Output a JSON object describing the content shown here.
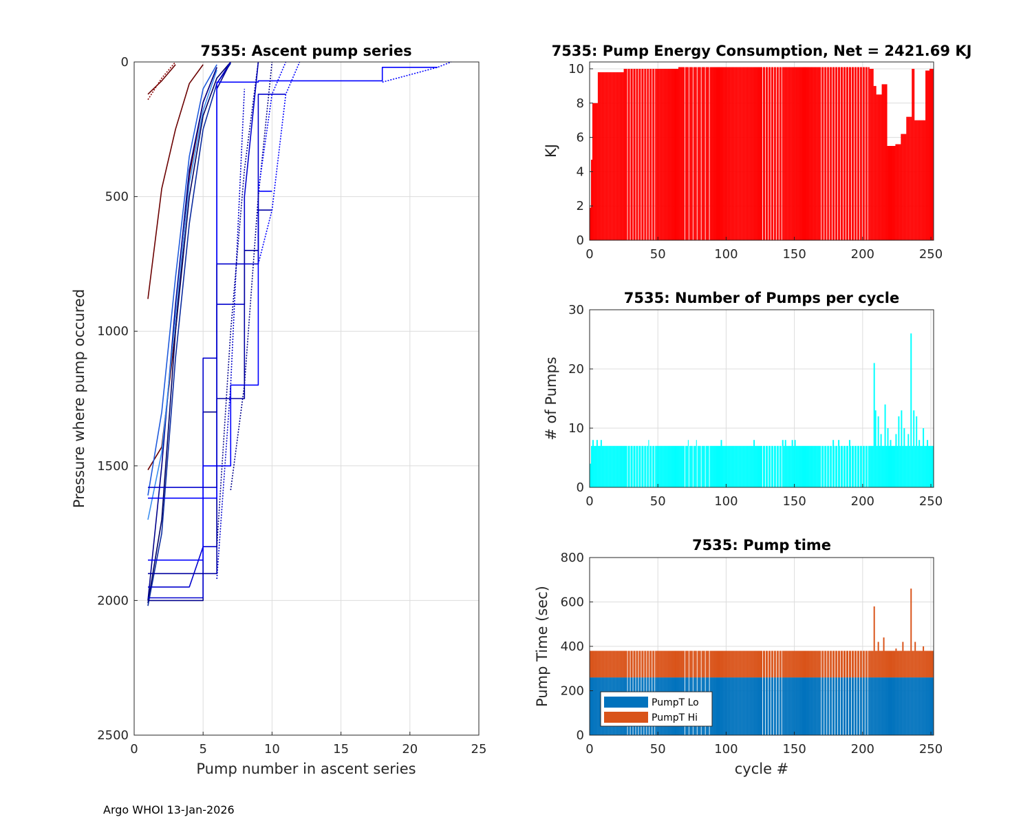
{
  "footer": "Argo WHOI 13-Jan-2026",
  "colors": {
    "energy": "#ff0000",
    "pumps": "#00ffff",
    "lo": "#0072bd",
    "hi": "#d95319",
    "grid": "#dcdcdc"
  },
  "chart_data": [
    {
      "id": "ascent",
      "type": "line",
      "title": "7535: Ascent pump series",
      "xlabel": "Pump number in ascent series",
      "ylabel": "Pressure where pump occured",
      "xlim": [
        0,
        25
      ],
      "ylim": [
        0,
        2500
      ],
      "y_reversed": true,
      "xticks": [
        "0",
        "5",
        "10",
        "15",
        "20",
        "25"
      ],
      "yticks": [
        "0",
        "500",
        "1000",
        "1500",
        "2000",
        "2500"
      ],
      "series": [
        {
          "name": "cycle-early-1",
          "color": "#6b0000",
          "dash": false,
          "x": [
            1,
            2,
            3,
            4,
            5,
            6
          ],
          "y": [
            1515,
            1430,
            1000,
            420,
            150,
            20
          ]
        },
        {
          "name": "cycle-early-2",
          "color": "#6b0000",
          "dash": false,
          "x": [
            1,
            2,
            3,
            4,
            5
          ],
          "y": [
            880,
            470,
            250,
            80,
            10
          ]
        },
        {
          "name": "cycle-early-3",
          "color": "#6b0000",
          "dash": false,
          "x": [
            1,
            2,
            3
          ],
          "y": [
            120,
            70,
            10
          ]
        },
        {
          "name": "cycle-a",
          "color": "#000060",
          "dash": false,
          "x": [
            1,
            2,
            3,
            4,
            5,
            6,
            7
          ],
          "y": [
            2010,
            1700,
            1000,
            500,
            200,
            60,
            0
          ]
        },
        {
          "name": "cycle-b",
          "color": "#00008b",
          "dash": false,
          "x": [
            1,
            2,
            3,
            4,
            5,
            6
          ],
          "y": [
            2000,
            1500,
            900,
            400,
            150,
            20
          ]
        },
        {
          "name": "cycle-c",
          "color": "#0a2a9e",
          "dash": false,
          "x": [
            1,
            2,
            3,
            4,
            5,
            6,
            7
          ],
          "y": [
            2020,
            1750,
            1100,
            600,
            250,
            80,
            5
          ]
        },
        {
          "name": "cycle-d",
          "color": "#1e5adc",
          "dash": false,
          "x": [
            1,
            2,
            3,
            4,
            5,
            6
          ],
          "y": [
            1610,
            1300,
            800,
            350,
            100,
            10
          ]
        },
        {
          "name": "cycle-e",
          "color": "#3a8ef0",
          "dash": false,
          "x": [
            1,
            2,
            3,
            4,
            5,
            6
          ],
          "y": [
            1700,
            1450,
            950,
            450,
            180,
            30
          ]
        },
        {
          "name": "cycle-f",
          "color": "#00008b",
          "dash": false,
          "x": [
            1,
            5,
            5,
            6,
            6,
            7
          ],
          "y": [
            2000,
            2000,
            1300,
            1300,
            100,
            0
          ]
        },
        {
          "name": "cycle-g",
          "color": "#0000cd",
          "dash": false,
          "x": [
            1,
            5,
            5,
            6,
            6,
            7
          ],
          "y": [
            1990,
            1990,
            1100,
            1100,
            80,
            0
          ]
        },
        {
          "name": "cycle-h",
          "color": "#0000cd",
          "dash": false,
          "x": [
            1,
            4,
            5,
            6,
            6,
            8,
            8,
            9
          ],
          "y": [
            1950,
            1950,
            1800,
            1800,
            900,
            900,
            500,
            0
          ]
        },
        {
          "name": "cycle-i",
          "color": "#0000a0",
          "dash": false,
          "x": [
            1,
            6,
            6,
            8,
            8,
            9,
            9,
            10
          ],
          "y": [
            1900,
            1900,
            1250,
            1250,
            700,
            700,
            550,
            550
          ]
        },
        {
          "name": "cycle-j",
          "color": "#0000ff",
          "dash": false,
          "x": [
            1,
            5,
            5,
            7,
            7,
            9,
            9,
            10
          ],
          "y": [
            1850,
            1850,
            1500,
            1500,
            1200,
            1200,
            480,
            480
          ]
        },
        {
          "name": "cycle-k",
          "color": "#0000ff",
          "dash": false,
          "x": [
            1,
            6,
            6,
            9,
            9,
            18,
            18,
            22
          ],
          "y": [
            1620,
            1620,
            75,
            75,
            70,
            70,
            20,
            20
          ]
        },
        {
          "name": "cycle-l",
          "color": "#0000cd",
          "dash": false,
          "x": [
            1,
            6,
            6,
            9,
            9,
            11
          ],
          "y": [
            1580,
            1580,
            750,
            750,
            120,
            120
          ]
        },
        {
          "name": "dot-a",
          "color": "#0000ff",
          "dash": true,
          "x": [
            18,
            22,
            23
          ],
          "y": [
            75,
            20,
            0
          ]
        },
        {
          "name": "dot-b",
          "color": "#0000ff",
          "dash": true,
          "x": [
            9,
            10,
            11,
            12
          ],
          "y": [
            750,
            550,
            120,
            0
          ]
        },
        {
          "name": "dot-c",
          "color": "#00008b",
          "dash": true,
          "x": [
            7,
            8,
            9,
            10
          ],
          "y": [
            1590,
            1200,
            500,
            0
          ]
        },
        {
          "name": "dot-d",
          "color": "#0000cd",
          "dash": true,
          "x": [
            6,
            7,
            8
          ],
          "y": [
            1920,
            1200,
            100
          ]
        },
        {
          "name": "dot-e",
          "color": "#0000ff",
          "dash": true,
          "x": [
            9,
            10,
            11
          ],
          "y": [
            480,
            120,
            0
          ]
        },
        {
          "name": "dot-f",
          "color": "#8b0000",
          "dash": true,
          "x": [
            1,
            2,
            3
          ],
          "y": [
            140,
            60,
            0
          ]
        },
        {
          "name": "dot-g",
          "color": "#00008b",
          "dash": true,
          "x": [
            6,
            7,
            8,
            9
          ],
          "y": [
            1800,
            1000,
            400,
            0
          ]
        }
      ]
    },
    {
      "id": "energy",
      "type": "bar",
      "title": "7535: Pump Energy Consumption,  Net = 2421.69 KJ",
      "xlabel": "",
      "ylabel": "KJ",
      "xlim": [
        0,
        252
      ],
      "ylim": [
        0,
        10.4
      ],
      "xticks": [
        "0",
        "50",
        "100",
        "150",
        "200",
        "250"
      ],
      "yticks": [
        "0",
        "2",
        "4",
        "6",
        "8",
        "10"
      ],
      "note": "cycle-by-cycle values (KJ) for cycles 0..251",
      "segments": [
        {
          "from": 0,
          "to": 1,
          "value": 1.9
        },
        {
          "from": 1,
          "to": 2,
          "value": 4.7
        },
        {
          "from": 2,
          "to": 6,
          "value": 8.0
        },
        {
          "from": 6,
          "to": 25,
          "value": 9.8
        },
        {
          "from": 25,
          "to": 65,
          "value": 10.0
        },
        {
          "from": 65,
          "to": 90,
          "value": 10.1
        },
        {
          "from": 90,
          "to": 205,
          "value": 10.1
        },
        {
          "from": 205,
          "to": 208,
          "value": 10.0
        },
        {
          "from": 208,
          "to": 210,
          "value": 9.0
        },
        {
          "from": 210,
          "to": 214,
          "value": 8.5
        },
        {
          "from": 214,
          "to": 218,
          "value": 9.1
        },
        {
          "from": 218,
          "to": 224,
          "value": 5.5
        },
        {
          "from": 224,
          "to": 228,
          "value": 5.6
        },
        {
          "from": 228,
          "to": 232,
          "value": 6.2
        },
        {
          "from": 232,
          "to": 236,
          "value": 7.2
        },
        {
          "from": 236,
          "to": 238,
          "value": 10.0
        },
        {
          "from": 238,
          "to": 246,
          "value": 7.0
        },
        {
          "from": 246,
          "to": 249,
          "value": 9.9
        },
        {
          "from": 249,
          "to": 252,
          "value": 10.0
        }
      ]
    },
    {
      "id": "pumps",
      "type": "bar",
      "title": "7535: Number of Pumps per cycle",
      "xlabel": "",
      "ylabel": "# of Pumps",
      "xlim": [
        0,
        252
      ],
      "ylim": [
        0,
        30
      ],
      "xticks": [
        "0",
        "50",
        "100",
        "150",
        "200",
        "250"
      ],
      "yticks": [
        "0",
        "10",
        "20",
        "30"
      ],
      "base": 7,
      "spikes": [
        {
          "cycle": 0,
          "value": 4
        },
        {
          "cycle": 2,
          "value": 8
        },
        {
          "cycle": 5,
          "value": 8
        },
        {
          "cycle": 8,
          "value": 8
        },
        {
          "cycle": 43,
          "value": 8
        },
        {
          "cycle": 72,
          "value": 8
        },
        {
          "cycle": 78,
          "value": 8
        },
        {
          "cycle": 96,
          "value": 8
        },
        {
          "cycle": 120,
          "value": 8
        },
        {
          "cycle": 141,
          "value": 8
        },
        {
          "cycle": 143,
          "value": 8
        },
        {
          "cycle": 148,
          "value": 8
        },
        {
          "cycle": 150,
          "value": 8
        },
        {
          "cycle": 178,
          "value": 8
        },
        {
          "cycle": 182,
          "value": 8
        },
        {
          "cycle": 190,
          "value": 8
        },
        {
          "cycle": 208,
          "value": 21
        },
        {
          "cycle": 209,
          "value": 13
        },
        {
          "cycle": 211,
          "value": 12
        },
        {
          "cycle": 213,
          "value": 9
        },
        {
          "cycle": 216,
          "value": 14
        },
        {
          "cycle": 218,
          "value": 10
        },
        {
          "cycle": 220,
          "value": 8
        },
        {
          "cycle": 224,
          "value": 9
        },
        {
          "cycle": 226,
          "value": 12
        },
        {
          "cycle": 228,
          "value": 13
        },
        {
          "cycle": 230,
          "value": 10
        },
        {
          "cycle": 233,
          "value": 9
        },
        {
          "cycle": 235,
          "value": 26
        },
        {
          "cycle": 237,
          "value": 13
        },
        {
          "cycle": 239,
          "value": 12
        },
        {
          "cycle": 241,
          "value": 8
        },
        {
          "cycle": 244,
          "value": 10
        },
        {
          "cycle": 247,
          "value": 8
        }
      ]
    },
    {
      "id": "pumptime",
      "type": "bar",
      "stacked": true,
      "title": "7535: Pump time",
      "xlabel": "cycle #",
      "ylabel": "Pump Time (sec)",
      "xlim": [
        0,
        252
      ],
      "ylim": [
        0,
        800
      ],
      "xticks": [
        "0",
        "50",
        "100",
        "150",
        "200",
        "250"
      ],
      "yticks": [
        "0",
        "200",
        "400",
        "600",
        "800"
      ],
      "legend": {
        "position": "bottom-left",
        "entries": [
          "PumpT Lo",
          "PumpT Hi"
        ]
      },
      "lo_base": 260,
      "hi_base": 380,
      "spikes_total": [
        {
          "cycle": 208,
          "value": 580
        },
        {
          "cycle": 211,
          "value": 420
        },
        {
          "cycle": 215,
          "value": 440
        },
        {
          "cycle": 224,
          "value": 390
        },
        {
          "cycle": 229,
          "value": 420
        },
        {
          "cycle": 235,
          "value": 660
        },
        {
          "cycle": 238,
          "value": 420
        },
        {
          "cycle": 244,
          "value": 400
        }
      ]
    }
  ]
}
